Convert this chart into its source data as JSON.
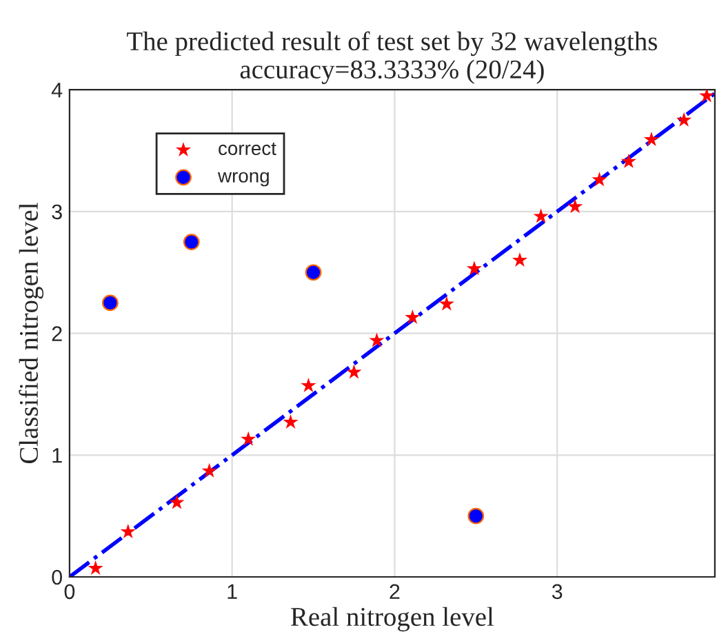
{
  "chart_data": {
    "type": "scatter",
    "title": "The predicted result of test set by 32 wavelengths\naccuracy=83.3333% (20/24)",
    "xlabel": "Real nitrogen level",
    "ylabel": "Classified nitrogen level",
    "xlim": [
      0,
      3.97
    ],
    "ylim": [
      0,
      4
    ],
    "xticks": [
      0,
      1,
      2,
      3
    ],
    "yticks": [
      0,
      1,
      2,
      3,
      4
    ],
    "grid": true,
    "legend": "top left",
    "series": [
      {
        "type": "line",
        "color": "#0000ff",
        "line_style": "dashed",
        "marker": "none",
        "x": [
          0,
          3.97
        ],
        "values": [
          0,
          3.97
        ]
      },
      {
        "name": "correct",
        "color": "#ff0000",
        "marker": "star",
        "x": [
          0.16,
          0.36,
          0.66,
          0.86,
          1.1,
          1.36,
          1.47,
          1.75,
          1.89,
          2.11,
          2.32,
          2.49,
          2.77,
          2.9,
          3.11,
          3.26,
          3.44,
          3.58,
          3.78,
          3.92
        ],
        "values": [
          0.07,
          0.37,
          0.61,
          0.87,
          1.13,
          1.27,
          1.57,
          1.68,
          1.94,
          2.13,
          2.24,
          2.53,
          2.6,
          2.96,
          3.04,
          3.26,
          3.41,
          3.59,
          3.75,
          3.95
        ]
      },
      {
        "name": "wrong",
        "color": "#0000ff",
        "marker": "circle",
        "x": [
          0.25,
          0.75,
          1.5,
          2.5
        ],
        "values": [
          2.25,
          2.75,
          2.5,
          0.5
        ]
      }
    ]
  }
}
